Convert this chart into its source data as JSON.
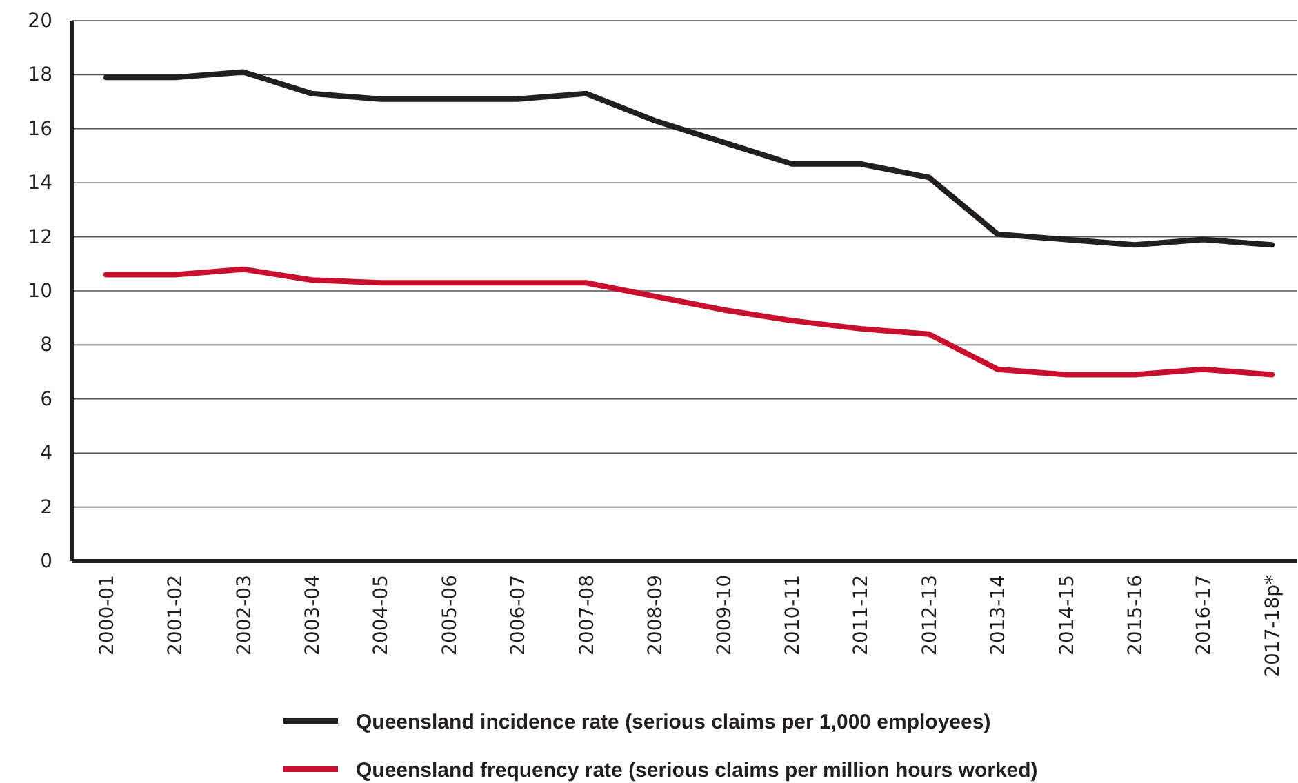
{
  "chart_data": {
    "type": "line",
    "categories": [
      "2000-01",
      "2001-02",
      "2002-03",
      "2003-04",
      "2004-05",
      "2005-06",
      "2006-07",
      "2007-08",
      "2008-09",
      "2009-10",
      "2010-11",
      "2011-12",
      "2012-13",
      "2013-14",
      "2014-15",
      "2015-16",
      "2016-17",
      "2017-18p*"
    ],
    "series": [
      {
        "name": "Queensland incidence rate (serious claims per 1,000 employees)",
        "color": "#231f20",
        "values": [
          17.9,
          17.9,
          18.1,
          17.3,
          17.1,
          17.1,
          17.1,
          17.3,
          16.3,
          15.5,
          14.7,
          14.7,
          14.2,
          12.1,
          11.9,
          11.7,
          11.9,
          11.7
        ]
      },
      {
        "name": "Queensland frequency rate (serious claims per million hours worked)",
        "color": "#c8102e",
        "values": [
          10.6,
          10.6,
          10.8,
          10.4,
          10.3,
          10.3,
          10.3,
          10.3,
          9.8,
          9.3,
          8.9,
          8.6,
          8.4,
          7.1,
          6.9,
          6.9,
          7.1,
          6.9
        ]
      }
    ],
    "ylim": [
      0,
      20
    ],
    "yticks": [
      0,
      2,
      4,
      6,
      8,
      10,
      12,
      14,
      16,
      18,
      20
    ],
    "grid": "y",
    "legend": "bottom",
    "marker": "none",
    "line_style": "solid"
  }
}
